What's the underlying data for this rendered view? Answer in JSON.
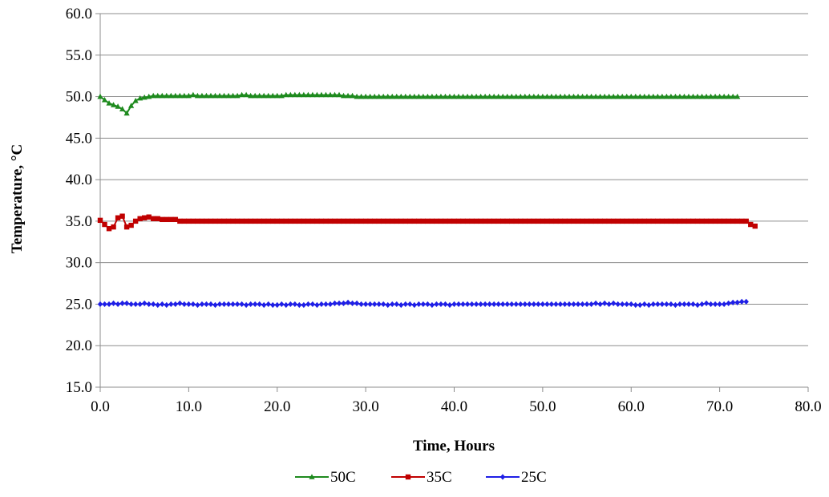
{
  "chart_data": {
    "type": "line",
    "title": "",
    "xlabel": "Time, Hours",
    "ylabel": "Temperature, °C",
    "xlim": [
      0,
      80
    ],
    "ylim": [
      15,
      60
    ],
    "x_ticks": [
      "0.0",
      "10.0",
      "20.0",
      "30.0",
      "40.0",
      "50.0",
      "60.0",
      "70.0",
      "80.0"
    ],
    "y_ticks": [
      "15.0",
      "20.0",
      "25.0",
      "30.0",
      "35.0",
      "40.0",
      "45.0",
      "50.0",
      "55.0",
      "60.0"
    ],
    "grid": "horizontal",
    "legend_position": "bottom",
    "series": [
      {
        "name": "50C",
        "color": "#1e8a1e",
        "marker": "triangle",
        "x_start": 0,
        "x_step": 0.5,
        "values": [
          50.0,
          49.6,
          49.2,
          49.0,
          48.8,
          48.5,
          48.0,
          48.9,
          49.5,
          49.8,
          49.9,
          50.0,
          50.1,
          50.1,
          50.1,
          50.1,
          50.1,
          50.1,
          50.1,
          50.1,
          50.1,
          50.2,
          50.1,
          50.1,
          50.1,
          50.1,
          50.1,
          50.1,
          50.1,
          50.1,
          50.1,
          50.1,
          50.2,
          50.2,
          50.1,
          50.1,
          50.1,
          50.1,
          50.1,
          50.1,
          50.1,
          50.1,
          50.2,
          50.2,
          50.2,
          50.2,
          50.2,
          50.2,
          50.2,
          50.2,
          50.2,
          50.2,
          50.2,
          50.2,
          50.2,
          50.1,
          50.1,
          50.1,
          50.0,
          50.0,
          50.0,
          50.0,
          50.0,
          50.0,
          50.0,
          50.0,
          50.0,
          50.0,
          50.0,
          50.0,
          50.0,
          50.0,
          50.0,
          50.0,
          50.0,
          50.0,
          50.0,
          50.0,
          50.0,
          50.0,
          50.0,
          50.0,
          50.0,
          50.0,
          50.0,
          50.0,
          50.0,
          50.0,
          50.0,
          50.0,
          50.0,
          50.0,
          50.0,
          50.0,
          50.0,
          50.0,
          50.0,
          50.0,
          50.0,
          50.0,
          50.0,
          50.0,
          50.0,
          50.0,
          50.0,
          50.0,
          50.0,
          50.0,
          50.0,
          50.0,
          50.0,
          50.0,
          50.0,
          50.0,
          50.0,
          50.0,
          50.0,
          50.0,
          50.0,
          50.0,
          50.0,
          50.0,
          50.0,
          50.0,
          50.0,
          50.0,
          50.0,
          50.0,
          50.0,
          50.0,
          50.0,
          50.0,
          50.0,
          50.0,
          50.0,
          50.0,
          50.0,
          50.0,
          50.0,
          50.0,
          50.0,
          50.0,
          50.0,
          50.0,
          50.0
        ]
      },
      {
        "name": "35C",
        "color": "#c00000",
        "marker": "square",
        "x_start": 0,
        "x_step": 0.5,
        "values": [
          35.1,
          34.6,
          34.1,
          34.3,
          35.4,
          35.6,
          34.3,
          34.5,
          35.0,
          35.3,
          35.4,
          35.5,
          35.3,
          35.3,
          35.2,
          35.2,
          35.2,
          35.2,
          35.0,
          35.0,
          35.0,
          35.0,
          35.0,
          35.0,
          35.0,
          35.0,
          35.0,
          35.0,
          35.0,
          35.0,
          35.0,
          35.0,
          35.0,
          35.0,
          35.0,
          35.0,
          35.0,
          35.0,
          35.0,
          35.0,
          35.0,
          35.0,
          35.0,
          35.0,
          35.0,
          35.0,
          35.0,
          35.0,
          35.0,
          35.0,
          35.0,
          35.0,
          35.0,
          35.0,
          35.0,
          35.0,
          35.0,
          35.0,
          35.0,
          35.0,
          35.0,
          35.0,
          35.0,
          35.0,
          35.0,
          35.0,
          35.0,
          35.0,
          35.0,
          35.0,
          35.0,
          35.0,
          35.0,
          35.0,
          35.0,
          35.0,
          35.0,
          35.0,
          35.0,
          35.0,
          35.0,
          35.0,
          35.0,
          35.0,
          35.0,
          35.0,
          35.0,
          35.0,
          35.0,
          35.0,
          35.0,
          35.0,
          35.0,
          35.0,
          35.0,
          35.0,
          35.0,
          35.0,
          35.0,
          35.0,
          35.0,
          35.0,
          35.0,
          35.0,
          35.0,
          35.0,
          35.0,
          35.0,
          35.0,
          35.0,
          35.0,
          35.0,
          35.0,
          35.0,
          35.0,
          35.0,
          35.0,
          35.0,
          35.0,
          35.0,
          35.0,
          35.0,
          35.0,
          35.0,
          35.0,
          35.0,
          35.0,
          35.0,
          35.0,
          35.0,
          35.0,
          35.0,
          35.0,
          35.0,
          35.0,
          35.0,
          35.0,
          35.0,
          35.0,
          35.0,
          35.0,
          35.0,
          35.0,
          35.0,
          35.0,
          35.0,
          35.0,
          34.6,
          34.4
        ]
      },
      {
        "name": "25C",
        "color": "#1f1fe6",
        "marker": "diamond",
        "x_start": 0,
        "x_step": 0.5,
        "values": [
          25.0,
          25.0,
          25.0,
          25.1,
          25.0,
          25.1,
          25.1,
          25.0,
          25.0,
          25.0,
          25.1,
          25.0,
          25.0,
          24.9,
          25.0,
          24.9,
          25.0,
          25.0,
          25.1,
          25.0,
          25.0,
          25.0,
          24.9,
          25.0,
          25.0,
          25.0,
          24.9,
          25.0,
          25.0,
          25.0,
          25.0,
          25.0,
          25.0,
          24.9,
          25.0,
          25.0,
          25.0,
          24.9,
          25.0,
          24.9,
          24.9,
          25.0,
          24.9,
          25.0,
          25.0,
          24.9,
          24.9,
          25.0,
          25.0,
          24.9,
          25.0,
          25.0,
          25.0,
          25.1,
          25.1,
          25.1,
          25.2,
          25.1,
          25.1,
          25.0,
          25.0,
          25.0,
          25.0,
          25.0,
          25.0,
          24.9,
          25.0,
          25.0,
          24.9,
          25.0,
          25.0,
          24.9,
          25.0,
          25.0,
          25.0,
          24.9,
          25.0,
          25.0,
          25.0,
          24.9,
          25.0,
          25.0,
          25.0,
          25.0,
          25.0,
          25.0,
          25.0,
          25.0,
          25.0,
          25.0,
          25.0,
          25.0,
          25.0,
          25.0,
          25.0,
          25.0,
          25.0,
          25.0,
          25.0,
          25.0,
          25.0,
          25.0,
          25.0,
          25.0,
          25.0,
          25.0,
          25.0,
          25.0,
          25.0,
          25.0,
          25.0,
          25.0,
          25.1,
          25.0,
          25.1,
          25.0,
          25.1,
          25.0,
          25.0,
          25.0,
          25.0,
          24.9,
          24.9,
          25.0,
          24.9,
          25.0,
          25.0,
          25.0,
          25.0,
          25.0,
          24.9,
          25.0,
          25.0,
          25.0,
          25.0,
          24.9,
          25.0,
          25.1,
          25.0,
          25.0,
          25.0,
          25.0,
          25.1,
          25.2,
          25.2,
          25.3,
          25.3
        ]
      }
    ]
  }
}
